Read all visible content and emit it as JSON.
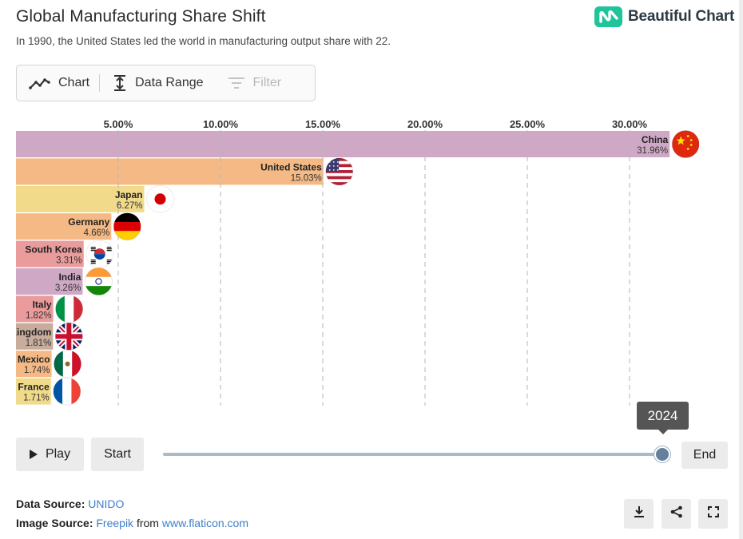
{
  "header": {
    "title": "Global Manufacturing Share Shift",
    "subtitle": "In 1990, the United States led the world in manufacturing output share with 22.",
    "brand": "Beautiful Chart",
    "brand_color": "#1fc49a"
  },
  "toolbar": {
    "chart_label": "Chart",
    "chart_icon": "trend-line-icon",
    "range_label": "Data Range",
    "range_icon": "vertical-range-icon",
    "filter_label": "Filter",
    "filter_icon": "filter-icon"
  },
  "chart_data": {
    "type": "bar",
    "orientation": "horizontal",
    "year": "2024",
    "xlim": [
      0,
      33
    ],
    "ticks": [
      5,
      10,
      15,
      20,
      25,
      30
    ],
    "tick_labels": [
      "5.00%",
      "10.00%",
      "15.00%",
      "20.00%",
      "25.00%",
      "30.00%"
    ],
    "grid": true,
    "categories": [
      "China",
      "United States",
      "Japan",
      "Germany",
      "South Korea",
      "India",
      "Italy",
      "United Kingdom",
      "Mexico",
      "France"
    ],
    "values": [
      31.96,
      15.03,
      6.27,
      4.66,
      3.31,
      3.26,
      1.82,
      1.81,
      1.74,
      1.71
    ],
    "value_labels": [
      "31.96%",
      "15.03%",
      "6.27%",
      "4.66%",
      "3.31%",
      "3.26%",
      "1.82%",
      "1.81%",
      "1.74%",
      "1.71%"
    ],
    "colors": [
      "#cfa8c6",
      "#f4b985",
      "#f1db8b",
      "#f4b985",
      "#ea9b9b",
      "#cfa8c6",
      "#ea9b9b",
      "#c8ad9d",
      "#f4b985",
      "#f1db8b"
    ],
    "flags": [
      "china-flag-icon",
      "usa-flag-icon",
      "japan-flag-icon",
      "germany-flag-icon",
      "south-korea-flag-icon",
      "india-flag-icon",
      "italy-flag-icon",
      "uk-flag-icon",
      "mexico-flag-icon",
      "france-flag-icon"
    ]
  },
  "controls": {
    "play_label": "Play",
    "start_label": "Start",
    "end_label": "End",
    "current_year": "2024",
    "slider_progress": 1.0
  },
  "footer": {
    "data_source_label": "Data Source:",
    "data_source": "UNIDO",
    "image_source_label": "Image Source:",
    "image_source": "Freepik",
    "from_text": "from",
    "image_site": "www.flaticon.com",
    "link_color": "#3f7ec9",
    "download_icon": "download-icon",
    "share_icon": "share-icon",
    "fullscreen_icon": "fullscreen-icon"
  }
}
